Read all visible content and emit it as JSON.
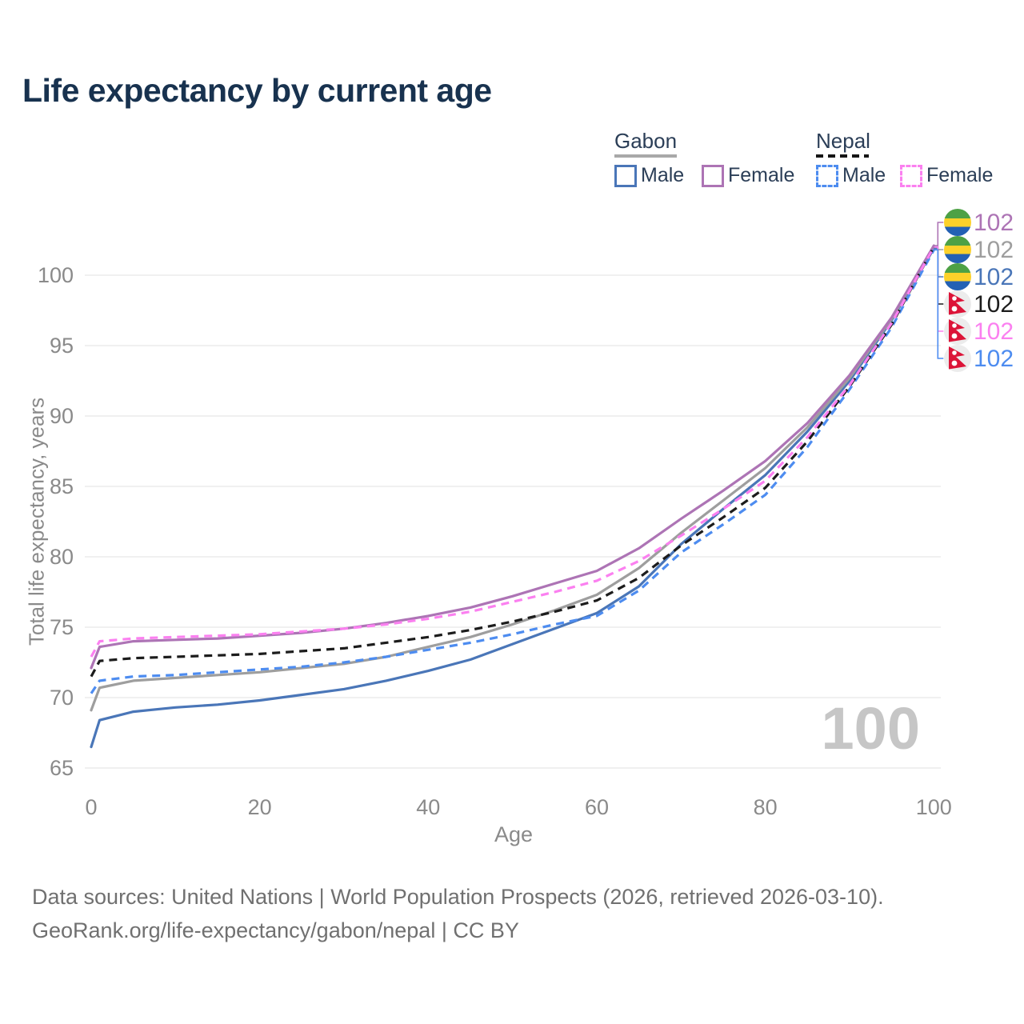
{
  "title": "Life expectancy by current age",
  "legend": {
    "groups": [
      {
        "country": "Gabon",
        "line_style": "solid",
        "line_color": "#a8a8a8",
        "items": [
          {
            "label": "Male",
            "series_id": "gabon_male"
          },
          {
            "label": "Female",
            "series_id": "gabon_female"
          }
        ]
      },
      {
        "country": "Nepal",
        "line_style": "dashed",
        "line_color": "#161616",
        "items": [
          {
            "label": "Male",
            "series_id": "nepal_male"
          },
          {
            "label": "Female",
            "series_id": "nepal_female"
          }
        ]
      }
    ]
  },
  "watermark": "100",
  "footer": {
    "line1": "Data sources: United Nations | World Population Prospects (2026, retrieved 2026-03-10).",
    "line2": "GeoRank.org/life-expectancy/gabon/nepal | CC BY"
  },
  "chart_data": {
    "type": "line",
    "title": "Life expectancy by current age",
    "xlabel": "Age",
    "ylabel": "Total life expectancy, years",
    "xlim": [
      0,
      100
    ],
    "ylim": [
      65,
      102.5
    ],
    "xticks": [
      0,
      20,
      40,
      60,
      80,
      100
    ],
    "yticks": [
      65,
      70,
      75,
      80,
      85,
      90,
      95,
      100
    ],
    "grid": "horizontal-only",
    "legend_position": "top-right",
    "x": [
      0,
      1,
      5,
      10,
      15,
      20,
      25,
      30,
      35,
      40,
      45,
      50,
      55,
      60,
      65,
      70,
      75,
      80,
      85,
      90,
      95,
      100
    ],
    "draw_order": [
      2,
      1,
      0,
      5,
      3,
      4
    ],
    "series": [
      {
        "id": "gabon_female",
        "name": "Gabon Female",
        "country": "Gabon",
        "sex": "Female",
        "color": "#ad74b5",
        "style": "solid",
        "flag": "gabon",
        "end_label": "102",
        "label_row": 0,
        "values": [
          72.1,
          73.6,
          74.0,
          74.1,
          74.2,
          74.4,
          74.6,
          74.9,
          75.3,
          75.8,
          76.4,
          77.2,
          78.1,
          79.0,
          80.6,
          82.7,
          84.7,
          86.8,
          89.5,
          92.9,
          97.0,
          102.1
        ]
      },
      {
        "id": "gabon_both",
        "name": "Gabon Both sexes",
        "country": "Gabon",
        "sex": "Both",
        "color": "#9e9e9e",
        "style": "solid",
        "flag": "gabon",
        "end_label": "102",
        "label_row": 1,
        "values": [
          69.1,
          70.7,
          71.2,
          71.4,
          71.6,
          71.8,
          72.1,
          72.4,
          72.9,
          73.6,
          74.3,
          75.2,
          76.2,
          77.3,
          79.2,
          81.7,
          84.0,
          86.3,
          89.2,
          92.7,
          96.9,
          102.0
        ]
      },
      {
        "id": "gabon_male",
        "name": "Gabon Male",
        "country": "Gabon",
        "sex": "Male",
        "color": "#4a76b8",
        "style": "solid",
        "flag": "gabon",
        "end_label": "102",
        "label_row": 2,
        "values": [
          66.5,
          68.4,
          69.0,
          69.3,
          69.5,
          69.8,
          70.2,
          70.6,
          71.2,
          71.9,
          72.7,
          73.8,
          74.9,
          76.0,
          77.9,
          80.9,
          83.4,
          85.8,
          88.9,
          92.5,
          96.8,
          101.9
        ]
      },
      {
        "id": "nepal_both",
        "name": "Nepal Both sexes",
        "country": "Nepal",
        "sex": "Both",
        "color": "#1c1c1c",
        "style": "dashed",
        "flag": "nepal",
        "end_label": "102",
        "label_row": 3,
        "values": [
          71.5,
          72.6,
          72.8,
          72.9,
          73.0,
          73.1,
          73.3,
          73.5,
          73.9,
          74.3,
          74.8,
          75.4,
          76.1,
          76.9,
          78.5,
          80.8,
          82.8,
          84.9,
          88.2,
          92.1,
          96.5,
          102.0
        ]
      },
      {
        "id": "nepal_female",
        "name": "Nepal Female",
        "country": "Nepal",
        "sex": "Female",
        "color": "#fb80f0",
        "style": "dashed",
        "flag": "nepal",
        "end_label": "102",
        "label_row": 4,
        "values": [
          72.9,
          74.0,
          74.2,
          74.3,
          74.4,
          74.5,
          74.7,
          74.9,
          75.2,
          75.6,
          76.1,
          76.8,
          77.5,
          78.3,
          79.7,
          81.5,
          83.4,
          85.4,
          88.5,
          92.2,
          96.6,
          102.0
        ]
      },
      {
        "id": "nepal_male",
        "name": "Nepal Male",
        "country": "Nepal",
        "sex": "Male",
        "color": "#4d8cf0",
        "style": "dashed",
        "flag": "nepal",
        "end_label": "102",
        "label_row": 5,
        "values": [
          70.3,
          71.2,
          71.5,
          71.6,
          71.8,
          72.0,
          72.2,
          72.5,
          72.9,
          73.4,
          73.9,
          74.5,
          75.2,
          75.8,
          77.6,
          80.3,
          82.3,
          84.4,
          87.8,
          91.9,
          96.3,
          101.8
        ]
      }
    ]
  }
}
